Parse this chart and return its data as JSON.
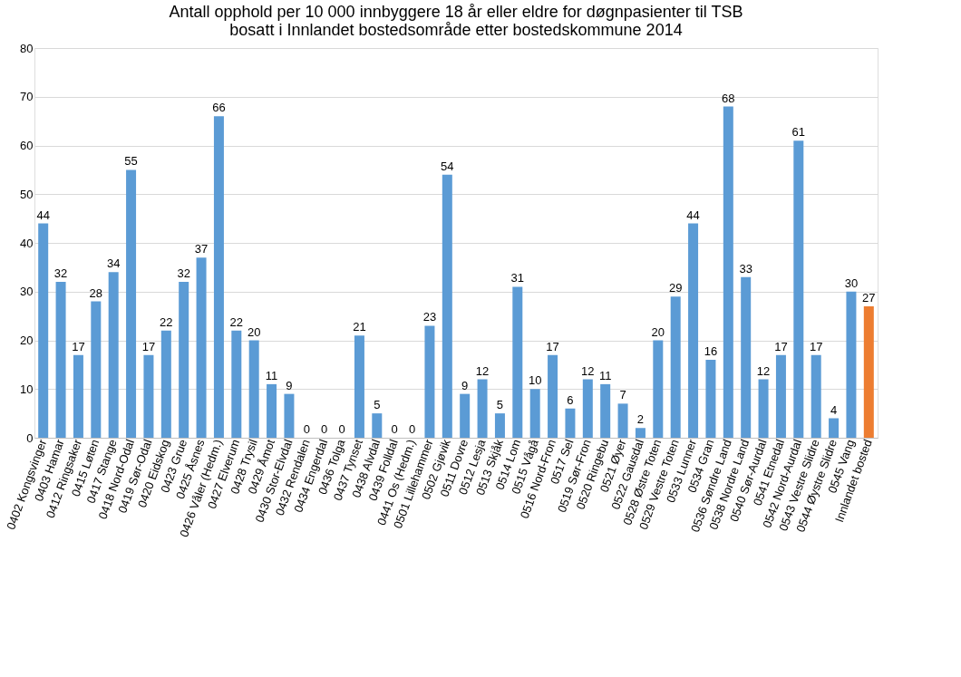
{
  "chart_data": {
    "type": "bar",
    "title": "Antall opphold per 10 000 innbyggere 18 år eller eldre for døgnpasienter til TSB\nbosatt i Innlandet bostedsområde etter bostedskommune  2014",
    "categories": [
      "0402 Kongsvinger",
      "0403 Hamar",
      "0412 Ringsaker",
      "0415 Løten",
      "0417 Stange",
      "0418 Nord-Odal",
      "0419 Sør-Odal",
      "0420 Eidskog",
      "0423 Grue",
      "0425 Åsnes",
      "0426 Våler (Hedm.)",
      "0427 Elverum",
      "0428 Trysil",
      "0429 Åmot",
      "0430 Stor-Elvdal",
      "0432 Rendalen",
      "0434 Engerdal",
      "0436 Tolga",
      "0437 Tynset",
      "0438 Alvdal",
      "0439 Folldal",
      "0441 Os (Hedm.)",
      "0501 Lillehammer",
      "0502 Gjøvik",
      "0511 Dovre",
      "0512 Lesja",
      "0513 Skjåk",
      "0514 Lom",
      "0515 Vågå",
      "0516 Nord-Fron",
      "0517 Sel",
      "0519 Sør-Fron",
      "0520 Ringebu",
      "0521 Øyer",
      "0522 Gausdal",
      "0528 Østre Toten",
      "0529 Vestre Toten",
      "0533 Lunner",
      "0534 Gran",
      "0536 Søndre Land",
      "0538 Nordre Land",
      "0540 Sør-Aurdal",
      "0541 Etnedal",
      "0542 Nord-Aurdal",
      "0543 Vestre Slidre",
      "0544 Øystre Slidre",
      "0545 Vang",
      "Innlandet bosted"
    ],
    "values": [
      44,
      32,
      17,
      28,
      34,
      55,
      17,
      22,
      32,
      37,
      66,
      22,
      20,
      11,
      9,
      0,
      0,
      0,
      21,
      5,
      0,
      0,
      23,
      54,
      9,
      12,
      5,
      31,
      10,
      17,
      6,
      12,
      11,
      7,
      2,
      20,
      29,
      44,
      16,
      68,
      33,
      12,
      17,
      61,
      17,
      4,
      30,
      27
    ],
    "colors": [
      "#5b9bd5",
      "#5b9bd5",
      "#5b9bd5",
      "#5b9bd5",
      "#5b9bd5",
      "#5b9bd5",
      "#5b9bd5",
      "#5b9bd5",
      "#5b9bd5",
      "#5b9bd5",
      "#5b9bd5",
      "#5b9bd5",
      "#5b9bd5",
      "#5b9bd5",
      "#5b9bd5",
      "#5b9bd5",
      "#5b9bd5",
      "#5b9bd5",
      "#5b9bd5",
      "#5b9bd5",
      "#5b9bd5",
      "#5b9bd5",
      "#5b9bd5",
      "#5b9bd5",
      "#5b9bd5",
      "#5b9bd5",
      "#5b9bd5",
      "#5b9bd5",
      "#5b9bd5",
      "#5b9bd5",
      "#5b9bd5",
      "#5b9bd5",
      "#5b9bd5",
      "#5b9bd5",
      "#5b9bd5",
      "#5b9bd5",
      "#5b9bd5",
      "#5b9bd5",
      "#5b9bd5",
      "#5b9bd5",
      "#5b9bd5",
      "#5b9bd5",
      "#5b9bd5",
      "#5b9bd5",
      "#5b9bd5",
      "#5b9bd5",
      "#5b9bd5",
      "#ed7d31"
    ],
    "ylim": [
      0,
      80
    ],
    "yticks": [
      0,
      10,
      20,
      30,
      40,
      50,
      60,
      70,
      80
    ],
    "grid": "y",
    "data_labels": true
  }
}
